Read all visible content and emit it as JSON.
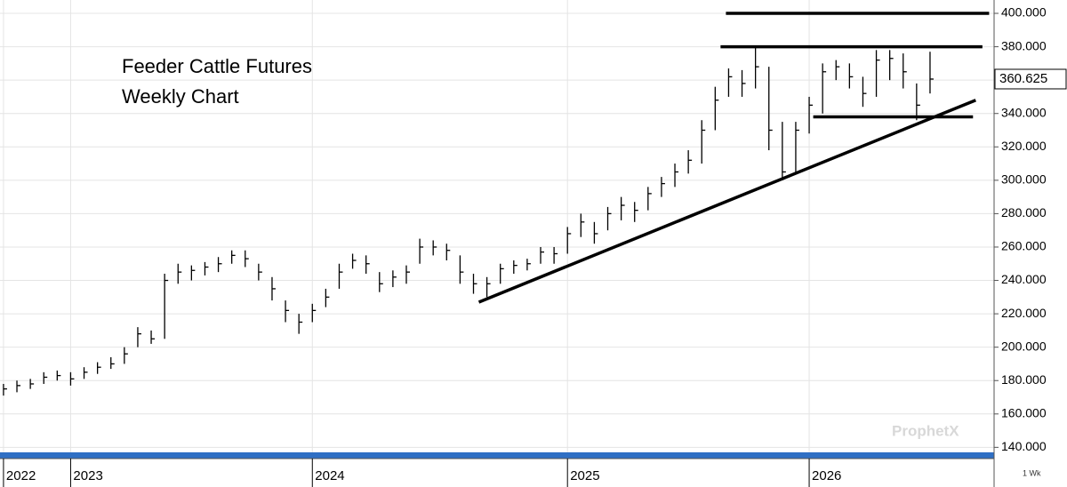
{
  "chart_data": {
    "type": "ohlc",
    "title": "Feeder Cattle Futures",
    "subtitle": "Weekly Chart",
    "watermark": "ProphetX",
    "period_label": "1 Wk",
    "color": "#000000",
    "grid": true,
    "categories": [
      "2022",
      null,
      null,
      null,
      null,
      "2023",
      null,
      null,
      null,
      null,
      null,
      null,
      null,
      null,
      null,
      null,
      null,
      null,
      null,
      null,
      null,
      null,
      null,
      "2024",
      null,
      null,
      null,
      null,
      null,
      null,
      null,
      null,
      null,
      null,
      null,
      null,
      null,
      null,
      null,
      null,
      null,
      null,
      "2025",
      null,
      null,
      null,
      null,
      null,
      null,
      null,
      null,
      null,
      null,
      null,
      null,
      null,
      null,
      null,
      null,
      null,
      "2026",
      null,
      null,
      null,
      null,
      null,
      null,
      null,
      null,
      null
    ],
    "high": [
      178,
      180,
      181,
      185,
      186,
      185,
      188,
      191,
      194,
      200,
      212,
      210,
      244,
      250,
      249,
      251,
      254,
      258,
      258,
      250,
      242,
      228,
      220,
      226,
      235,
      250,
      256,
      255,
      245,
      246,
      249,
      265,
      264,
      262,
      255,
      244,
      242,
      250,
      252,
      253,
      260,
      260,
      272,
      280,
      275,
      284,
      290,
      287,
      296,
      302,
      310,
      318,
      336,
      356,
      367,
      366,
      380,
      368,
      335,
      335,
      350,
      370,
      372,
      370,
      362,
      378,
      378,
      376,
      358,
      377
    ],
    "low": [
      171,
      173,
      175,
      178,
      180,
      177,
      181,
      184,
      187,
      190,
      200,
      202,
      205,
      238,
      240,
      243,
      245,
      250,
      248,
      240,
      228,
      215,
      208,
      215,
      224,
      235,
      247,
      244,
      233,
      236,
      238,
      250,
      255,
      252,
      238,
      232,
      230,
      238,
      244,
      246,
      250,
      250,
      256,
      266,
      262,
      270,
      276,
      275,
      282,
      290,
      296,
      304,
      310,
      330,
      350,
      350,
      355,
      318,
      300,
      305,
      328,
      340,
      360,
      355,
      344,
      350,
      360,
      355,
      336,
      352
    ],
    "close": [
      175,
      177,
      178,
      182,
      183,
      181,
      185,
      188,
      190,
      196,
      208,
      205,
      240,
      245,
      246,
      248,
      250,
      255,
      253,
      245,
      235,
      222,
      215,
      222,
      230,
      245,
      252,
      250,
      238,
      242,
      245,
      260,
      260,
      258,
      245,
      238,
      238,
      247,
      249,
      250,
      257,
      256,
      268,
      275,
      268,
      280,
      285,
      282,
      292,
      298,
      305,
      312,
      330,
      348,
      362,
      358,
      368,
      330,
      305,
      330,
      345,
      365,
      368,
      362,
      352,
      372,
      373,
      365,
      345,
      360.625
    ],
    "xlim": [
      -0.26,
      73.77
    ],
    "ylim": [
      137,
      408
    ],
    "yticks": [
      {
        "value": 140,
        "label": "140.000"
      },
      {
        "value": 160,
        "label": "160.000"
      },
      {
        "value": 180,
        "label": "180.000"
      },
      {
        "value": 200,
        "label": "200.000"
      },
      {
        "value": 220,
        "label": "220.000"
      },
      {
        "value": 240,
        "label": "240.000"
      },
      {
        "value": 260,
        "label": "260.000"
      },
      {
        "value": 280,
        "label": "280.000"
      },
      {
        "value": 300,
        "label": "300.000"
      },
      {
        "value": 320,
        "label": "320.000"
      },
      {
        "value": 340,
        "label": "340.000"
      },
      {
        "value": 360,
        "label": "360.000"
      },
      {
        "value": 380,
        "label": "380.000"
      },
      {
        "value": 400,
        "label": "400.000"
      }
    ],
    "trend_lines": [
      {
        "x": [
          53.8,
          73.4
        ],
        "y": [
          400,
          400
        ]
      },
      {
        "x": [
          53.4,
          72.9
        ],
        "y": [
          380,
          380
        ]
      },
      {
        "x": [
          60.3,
          72.2
        ],
        "y": [
          338,
          338
        ]
      },
      {
        "x": [
          35.4,
          72.4
        ],
        "y": [
          227,
          348
        ]
      }
    ]
  }
}
